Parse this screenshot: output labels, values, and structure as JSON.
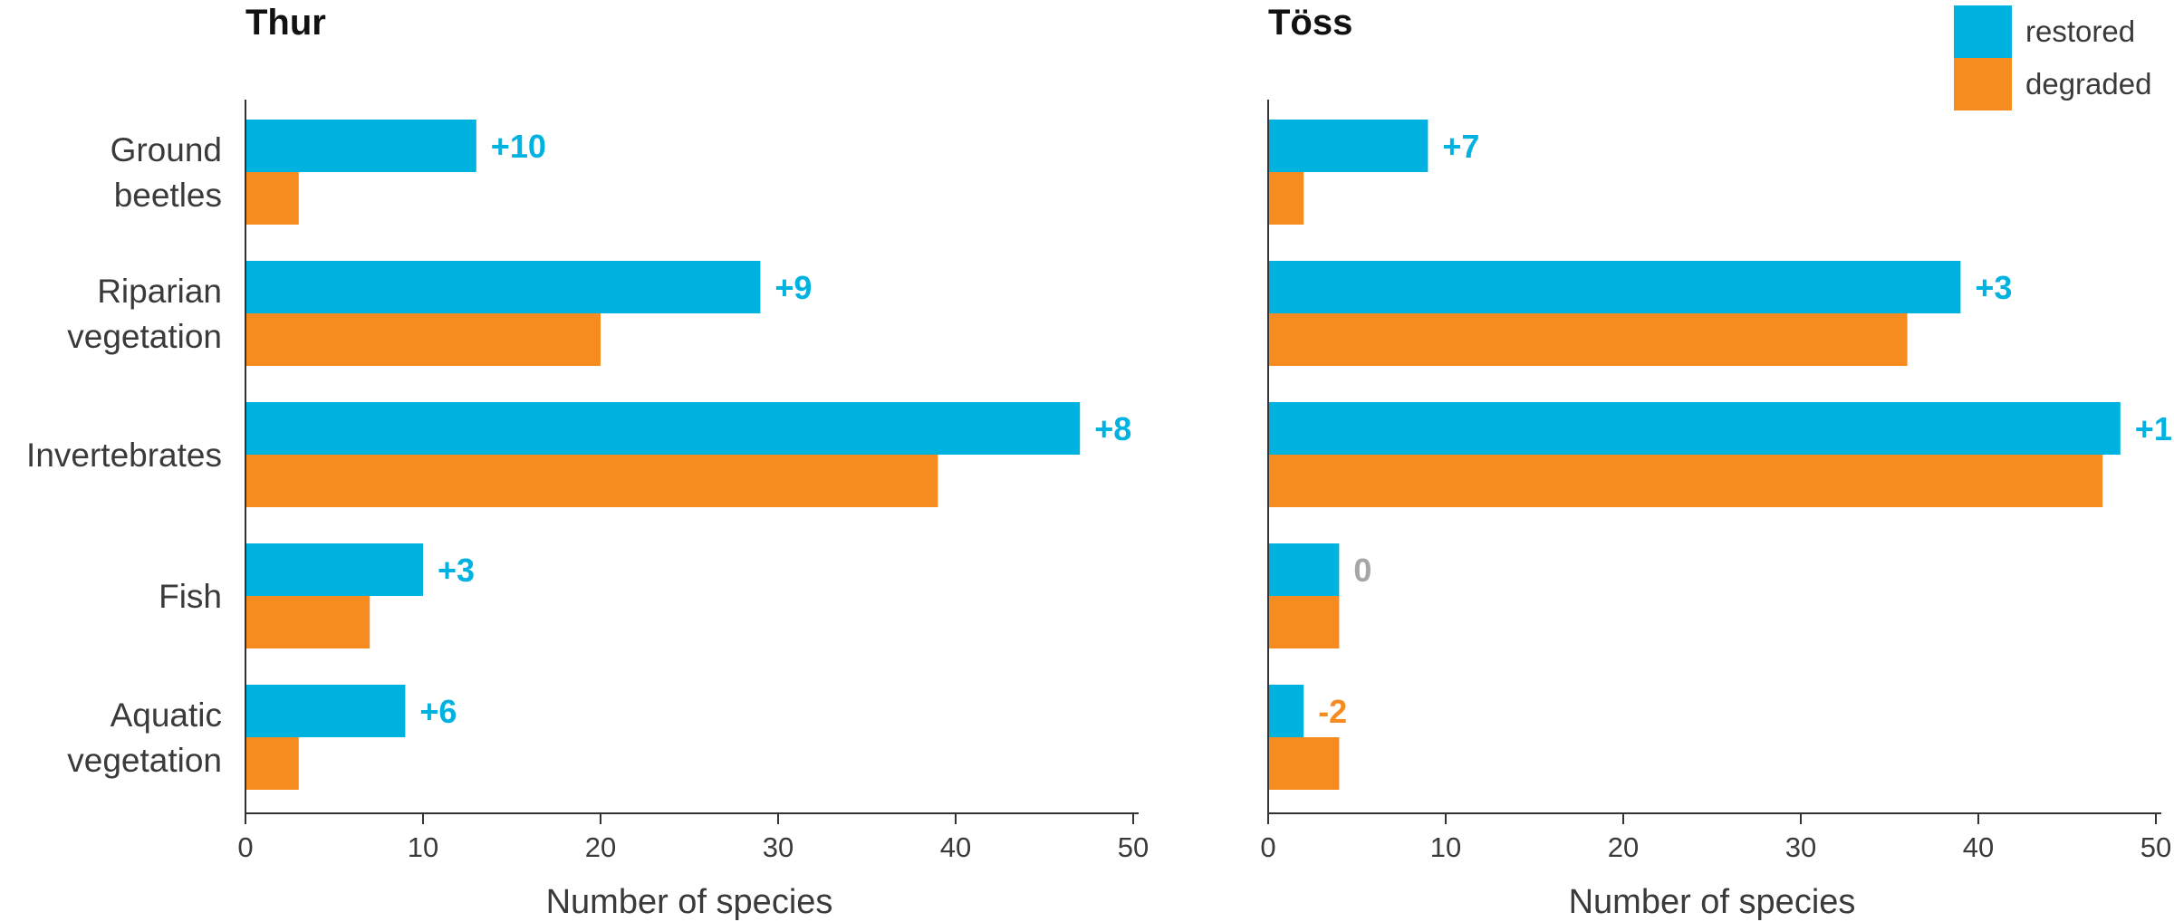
{
  "chart_data": {
    "type": "bar",
    "orientation": "horizontal",
    "categories": [
      [
        "Ground",
        "beetles"
      ],
      [
        "Riparian",
        "vegetation"
      ],
      [
        "Invertebrates"
      ],
      [
        "Fish"
      ],
      [
        "Aquatic",
        "vegetation"
      ]
    ],
    "legend": {
      "placement": "top-right",
      "entries": [
        {
          "name": "restored",
          "color": "#00b2e0"
        },
        {
          "name": "degraded",
          "color": "#f68b1f"
        }
      ]
    },
    "xticks": [
      0,
      10,
      20,
      30,
      40,
      50
    ],
    "xlim": [
      0,
      50
    ],
    "grid": false,
    "panels": [
      {
        "title": "Thur",
        "xlabel": "Number of species",
        "series": [
          {
            "name": "restored",
            "values": [
              13,
              29,
              47,
              10,
              9
            ]
          },
          {
            "name": "degraded",
            "values": [
              3,
              20,
              39,
              7,
              3
            ]
          }
        ],
        "differences": [
          "+10",
          "+9",
          "+8",
          "+3",
          "+6"
        ],
        "difference_colors": [
          "#00b2e0",
          "#00b2e0",
          "#00b2e0",
          "#00b2e0",
          "#00b2e0"
        ]
      },
      {
        "title": "Töss",
        "xlabel": "Number of species",
        "series": [
          {
            "name": "restored",
            "values": [
              9,
              39,
              48,
              4,
              2
            ]
          },
          {
            "name": "degraded",
            "values": [
              2,
              36,
              47,
              4,
              4
            ]
          }
        ],
        "differences": [
          "+7",
          "+3",
          "+1",
          "0",
          "-2"
        ],
        "difference_colors": [
          "#00b2e0",
          "#00b2e0",
          "#00b2e0",
          "#a6a6a6",
          "#f68b1f"
        ]
      }
    ]
  }
}
